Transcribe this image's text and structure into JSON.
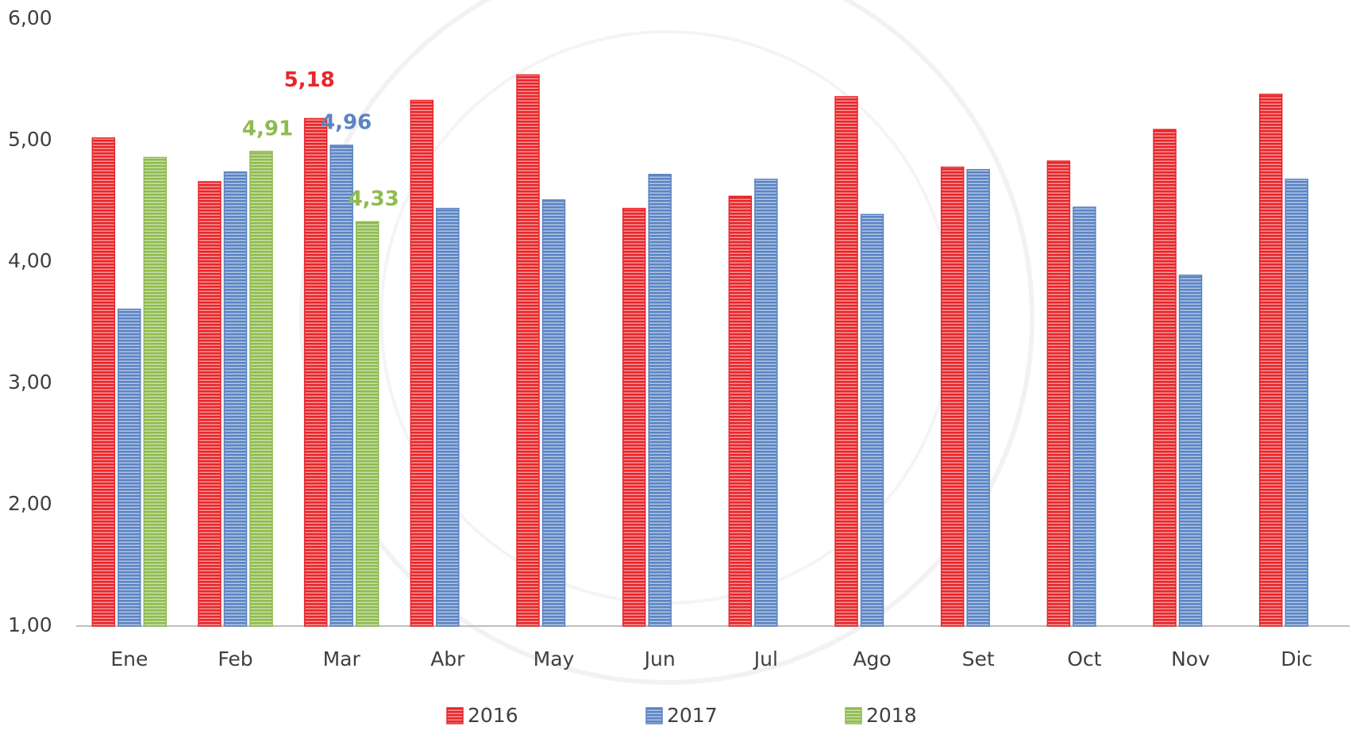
{
  "chart_data": {
    "type": "bar",
    "categories": [
      "Ene",
      "Feb",
      "Mar",
      "Abr",
      "May",
      "Jun",
      "Jul",
      "Ago",
      "Set",
      "Oct",
      "Nov",
      "Dic"
    ],
    "series": [
      {
        "name": "2016",
        "color": "#e8262a",
        "values": [
          5.02,
          4.66,
          5.18,
          5.33,
          5.54,
          4.44,
          4.54,
          5.36,
          4.78,
          4.83,
          5.09,
          5.38
        ],
        "value_labels": [
          null,
          null,
          "5,18",
          null,
          null,
          null,
          null,
          null,
          null,
          null,
          null,
          null
        ]
      },
      {
        "name": "2017",
        "color": "#5b84c4",
        "values": [
          3.61,
          4.74,
          4.96,
          4.44,
          4.51,
          4.72,
          4.68,
          4.39,
          4.76,
          4.45,
          3.89,
          4.68
        ],
        "value_labels": [
          null,
          null,
          "4,96",
          null,
          null,
          null,
          null,
          null,
          null,
          null,
          null,
          null
        ]
      },
      {
        "name": "2018",
        "color": "#8fbc4f",
        "values": [
          4.86,
          4.91,
          4.33,
          null,
          null,
          null,
          null,
          null,
          null,
          null,
          null,
          null
        ],
        "value_labels": [
          null,
          "4,91",
          "4,33",
          null,
          null,
          null,
          null,
          null,
          null,
          null,
          null,
          null
        ]
      }
    ],
    "ylim": [
      1,
      6
    ],
    "yticks": [
      {
        "value": 1,
        "label": "1,00"
      },
      {
        "value": 2,
        "label": "2,00"
      },
      {
        "value": 3,
        "label": "3,00"
      },
      {
        "value": 4,
        "label": "4,00"
      },
      {
        "value": 5,
        "label": "5,00"
      },
      {
        "value": 6,
        "label": "6,00"
      }
    ],
    "grid": false,
    "legend": "bottom"
  }
}
